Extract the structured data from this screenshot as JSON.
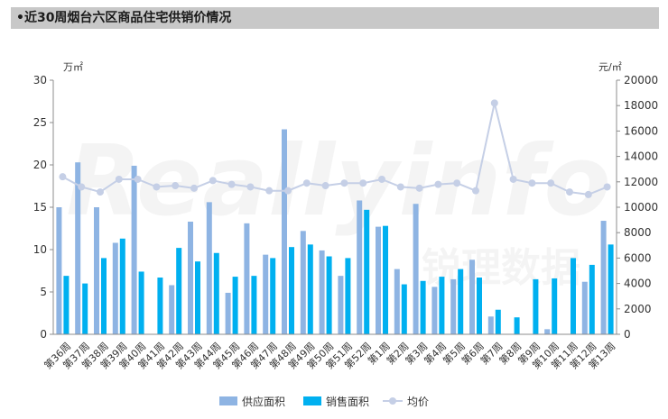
{
  "header": {
    "title": "•近30周烟台六区商品住宅供销价情况"
  },
  "watermark": {
    "brand": "Reallyinfo",
    "cn": "锐理数据"
  },
  "chart_data": {
    "type": "bar",
    "categories": [
      "第36周",
      "第37周",
      "第38周",
      "第39周",
      "第40周",
      "第41周",
      "第42周",
      "第43周",
      "第44周",
      "第45周",
      "第46周",
      "第47周",
      "第48周",
      "第49周",
      "第50周",
      "第51周",
      "第52周",
      "第1周",
      "第2周",
      "第3周",
      "第4周",
      "第5周",
      "第6周",
      "第7周",
      "第8周",
      "第9周",
      "第10周",
      "第11周",
      "第12周",
      "第13周"
    ],
    "series": [
      {
        "name": "供应面积",
        "axis": "left",
        "color": "#8eb4e3",
        "values": [
          15.0,
          20.3,
          15.0,
          10.8,
          19.9,
          0,
          5.8,
          13.3,
          15.6,
          4.9,
          13.1,
          9.4,
          24.2,
          12.2,
          9.9,
          6.9,
          15.8,
          12.7,
          7.7,
          15.4,
          5.6,
          6.5,
          8.8,
          2.1,
          0,
          0,
          0.6,
          0,
          6.2,
          13.4
        ]
      },
      {
        "name": "销售面积",
        "axis": "left",
        "color": "#00b0f0",
        "values": [
          6.9,
          6.0,
          9.0,
          11.3,
          7.4,
          6.7,
          10.2,
          8.6,
          9.6,
          6.8,
          6.9,
          9.0,
          10.3,
          10.6,
          9.2,
          9.0,
          14.7,
          12.8,
          5.9,
          6.3,
          6.8,
          7.7,
          6.7,
          2.9,
          2.0,
          6.5,
          6.6,
          9.0,
          8.2,
          10.6
        ]
      },
      {
        "name": "均价",
        "axis": "right",
        "color": "#c5cfe6",
        "values": [
          12400,
          11600,
          11200,
          12200,
          12200,
          11600,
          11700,
          11500,
          12100,
          11800,
          11600,
          11300,
          11300,
          11900,
          11700,
          11900,
          11900,
          12200,
          11600,
          11500,
          11800,
          11900,
          11300,
          18200,
          12200,
          11900,
          11900,
          11200,
          11000,
          11600
        ]
      }
    ],
    "left_axis": {
      "unit": "万㎡",
      "min": 0,
      "max": 30,
      "ticks": [
        0,
        5,
        10,
        15,
        20,
        25,
        30
      ]
    },
    "right_axis": {
      "unit": "元/㎡",
      "min": 0,
      "max": 20000,
      "ticks": [
        0,
        2000,
        4000,
        6000,
        8000,
        10000,
        12000,
        14000,
        16000,
        18000,
        20000
      ]
    },
    "grid": false,
    "legend_position": "bottom"
  }
}
